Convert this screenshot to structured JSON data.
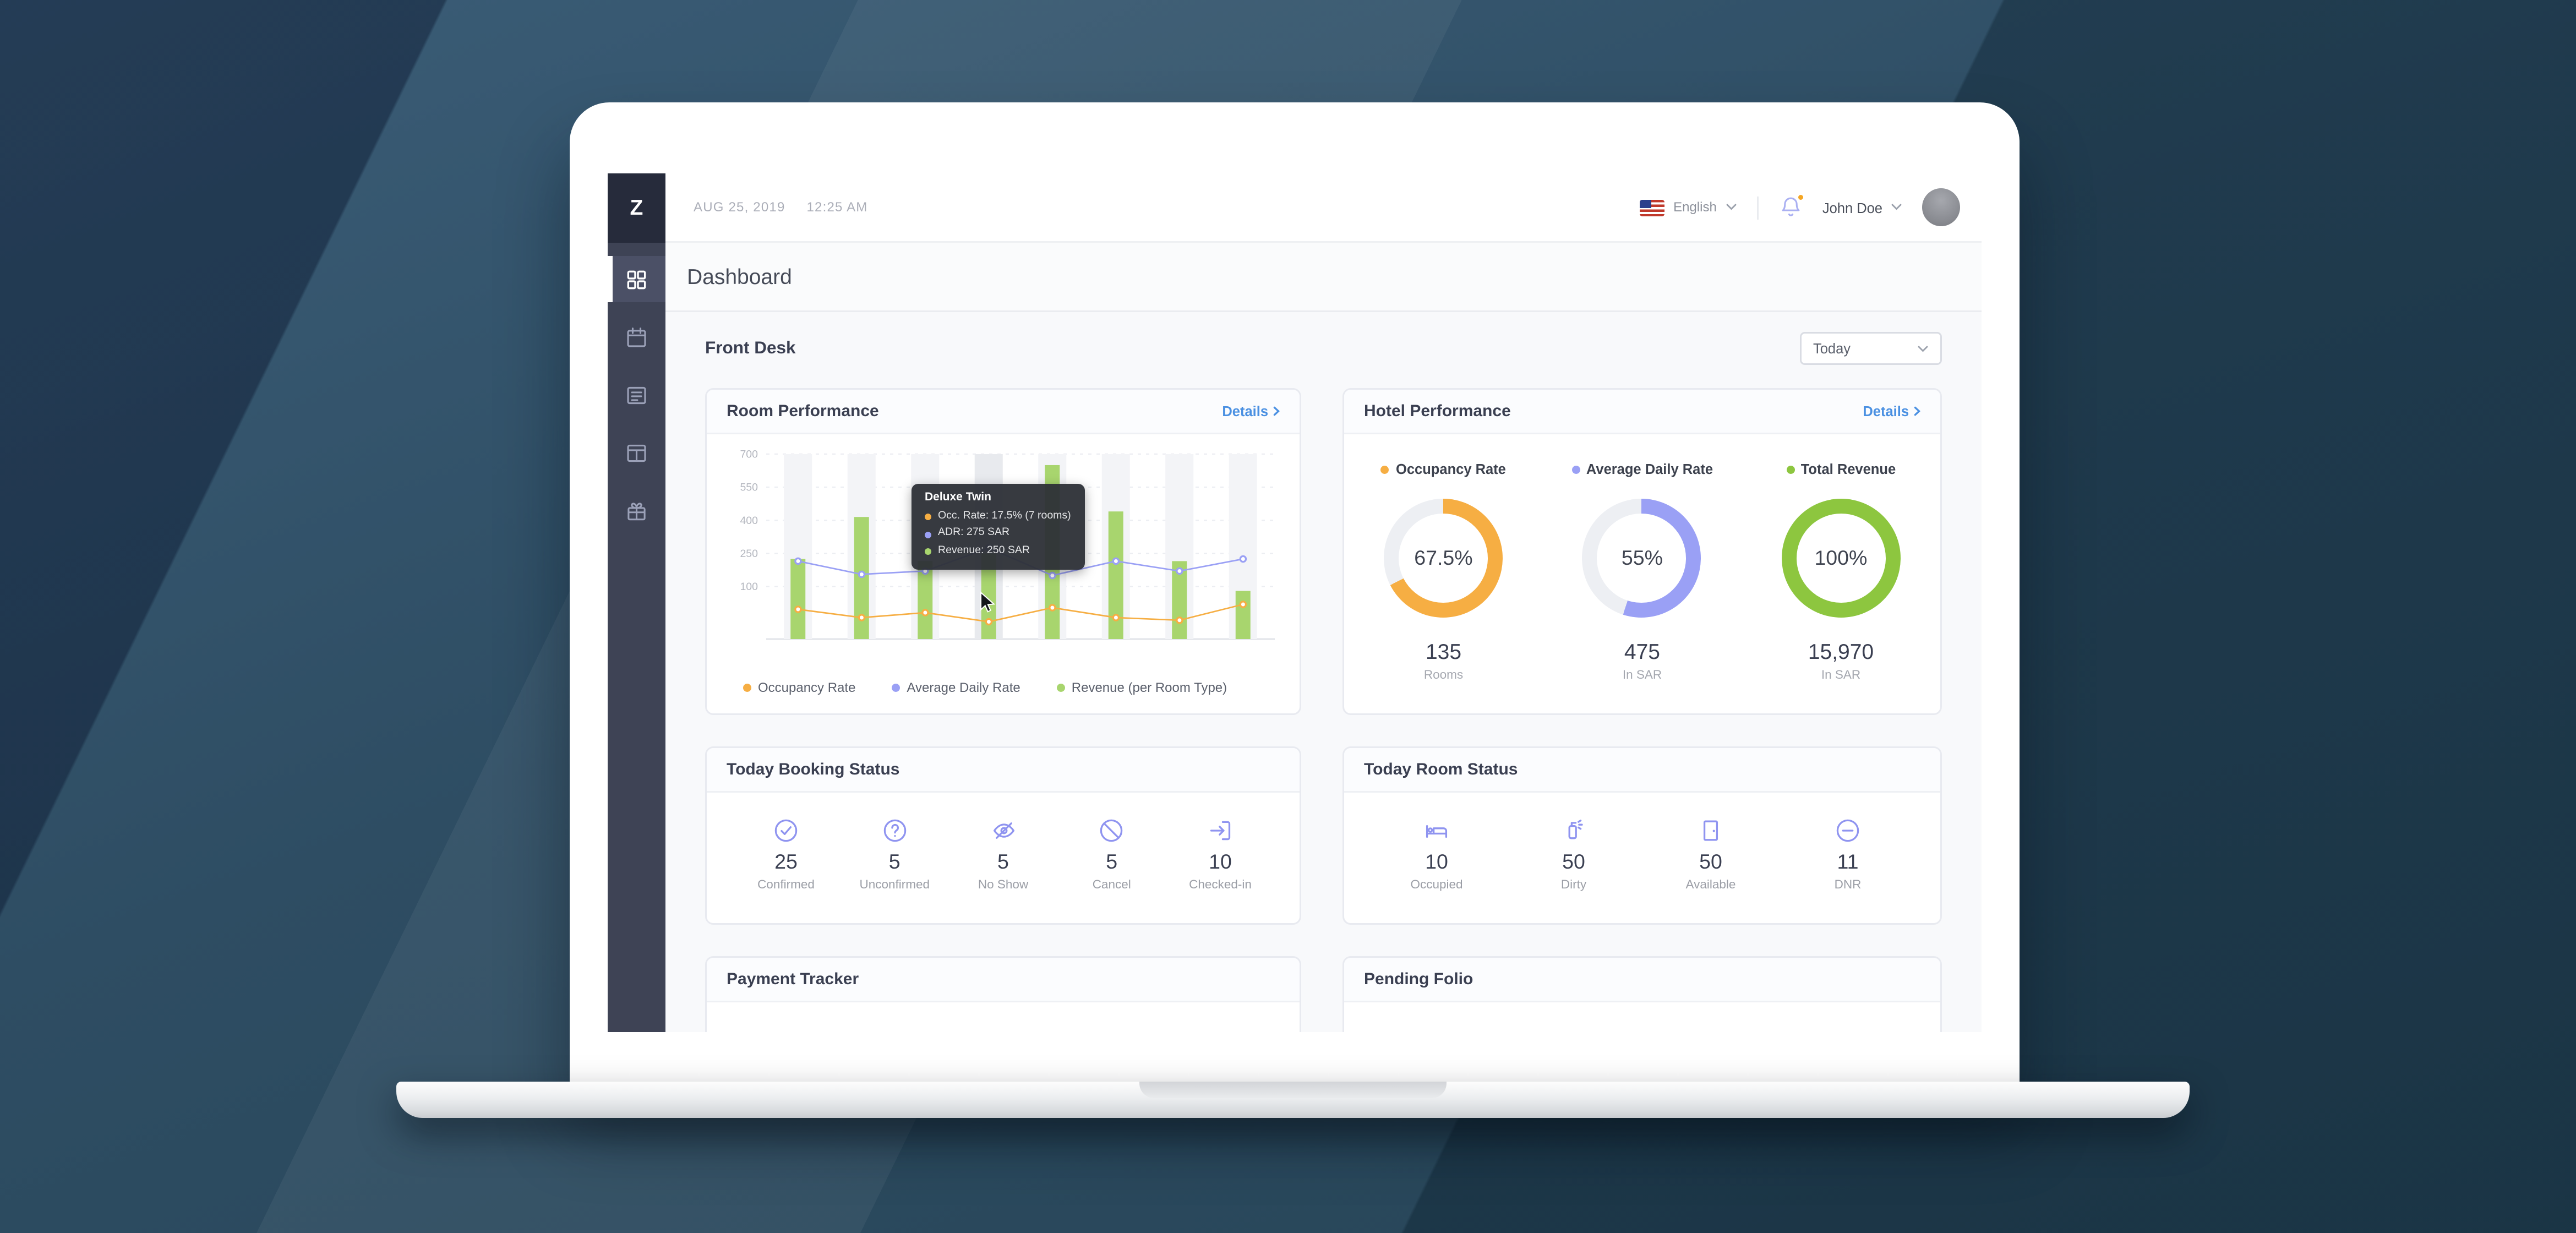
{
  "topbar": {
    "logo": "Z",
    "date": "AUG 25, 2019",
    "time": "12:25 AM",
    "language": "English",
    "user_name": "John Doe"
  },
  "sidebar": {
    "items": [
      {
        "name": "dashboard",
        "active": true
      },
      {
        "name": "calendar",
        "active": false
      },
      {
        "name": "folio",
        "active": false
      },
      {
        "name": "rooms",
        "active": false
      },
      {
        "name": "housekeeping",
        "active": false
      }
    ]
  },
  "page": {
    "title": "Dashboard",
    "section_title": "Front Desk",
    "range_value": "Today"
  },
  "cards": {
    "room_performance": {
      "title": "Room Performance",
      "details_label": "Details",
      "legend": [
        {
          "label": "Occupancy Rate",
          "color": "#F6AE43"
        },
        {
          "label": "Average Daily Rate",
          "color": "#9AA0F5"
        },
        {
          "label": "Revenue (per Room Type)",
          "color": "#A8D56E"
        }
      ],
      "tooltip": {
        "title": "Deluxe Twin",
        "rows": [
          {
            "text": "Occ. Rate: 17.5% (7 rooms)",
            "color": "#F6AE43"
          },
          {
            "text": "ADR: 275 SAR",
            "color": "#9AA0F5"
          },
          {
            "text": "Revenue: 250 SAR",
            "color": "#A8D56E"
          }
        ]
      }
    },
    "hotel_performance": {
      "title": "Hotel Performance",
      "details_label": "Details",
      "metrics": [
        {
          "label": "Occupancy Rate",
          "color": "#F6AE43",
          "track": "#EDEFF3",
          "percent": 67.5,
          "percent_label": "67.5%",
          "value": "135",
          "sub": "Rooms"
        },
        {
          "label": "Average Daily Rate",
          "color": "#9AA0F5",
          "track": "#EDEFF3",
          "percent": 55,
          "percent_label": "55%",
          "value": "475",
          "sub": "In SAR"
        },
        {
          "label": "Total Revenue",
          "color": "#8DC63F",
          "track": "#EDEFF3",
          "percent": 100,
          "percent_label": "100%",
          "value": "15,970",
          "sub": "In SAR"
        }
      ]
    },
    "booking_status": {
      "title": "Today Booking Status",
      "items": [
        {
          "icon": "confirmed-icon",
          "value": "25",
          "label": "Confirmed"
        },
        {
          "icon": "unconfirmed-icon",
          "value": "5",
          "label": "Unconfirmed"
        },
        {
          "icon": "no-show-icon",
          "value": "5",
          "label": "No Show"
        },
        {
          "icon": "cancel-icon",
          "value": "5",
          "label": "Cancel"
        },
        {
          "icon": "checked-in-icon",
          "value": "10",
          "label": "Checked-in"
        }
      ]
    },
    "room_status": {
      "title": "Today Room Status",
      "items": [
        {
          "icon": "occupied-icon",
          "value": "10",
          "label": "Occupied"
        },
        {
          "icon": "dirty-icon",
          "value": "50",
          "label": "Dirty"
        },
        {
          "icon": "available-icon",
          "value": "50",
          "label": "Available"
        },
        {
          "icon": "dnr-icon",
          "value": "11",
          "label": "DNR"
        }
      ]
    },
    "payment_tracker": {
      "title": "Payment Tracker"
    },
    "pending_folio": {
      "title": "Pending Folio"
    }
  },
  "chart_data": {
    "type": "combo-bar-line",
    "title": "Room Performance",
    "y_ticks": [
      100,
      250,
      400,
      550,
      700
    ],
    "x_labels_visible": false,
    "categories": [
      "",
      "",
      "",
      "Deluxe Twin",
      "",
      "",
      "",
      ""
    ],
    "series": [
      {
        "name": "Revenue (per Room Type)",
        "type": "bar",
        "color": "#A8D56E",
        "values": [
          225,
          415,
          215,
          250,
          650,
          440,
          215,
          80
        ]
      },
      {
        "name": "Average Daily Rate",
        "type": "line",
        "color": "#9AA0F5",
        "values": [
          215,
          155,
          170,
          275,
          150,
          215,
          170,
          225
        ]
      },
      {
        "name": "Occupancy Rate",
        "type": "line",
        "unit": "%",
        "color": "#F6AE43",
        "values": [
          55,
          30,
          45,
          17.5,
          60,
          30,
          22,
          70
        ]
      }
    ],
    "hovered_index": 3,
    "legend_position": "bottom",
    "grid": "dashed-horizontal"
  }
}
